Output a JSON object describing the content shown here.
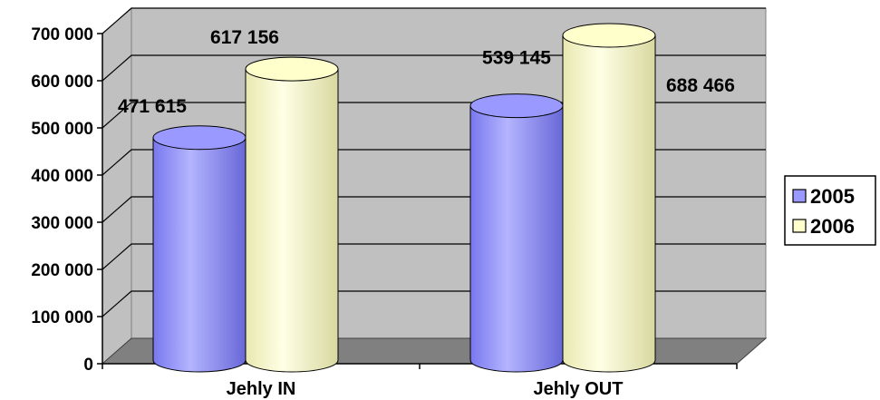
{
  "chart_data": {
    "type": "bar",
    "style": "3d-cylinder",
    "categories": [
      "Jehly IN",
      "Jehly OUT"
    ],
    "series": [
      {
        "name": "2005",
        "values": [
          471615,
          539145
        ],
        "color": "#9999ff",
        "label_text": [
          "471 615",
          "539 145"
        ]
      },
      {
        "name": "2006",
        "values": [
          617156,
          688466
        ],
        "color": "#ffffcc",
        "label_text": [
          "617 156",
          "688 466"
        ]
      }
    ],
    "ylim": [
      0,
      700000
    ],
    "y_ticks": [
      0,
      100000,
      200000,
      300000,
      400000,
      500000,
      600000,
      700000
    ],
    "y_tick_labels": [
      "0",
      "100 000",
      "200 000",
      "300 000",
      "400 000",
      "500 000",
      "600 000",
      "700 000"
    ],
    "grid": true,
    "legend_position": "right",
    "wall_color": "#c0c0c0",
    "floor_color": "#808080"
  }
}
